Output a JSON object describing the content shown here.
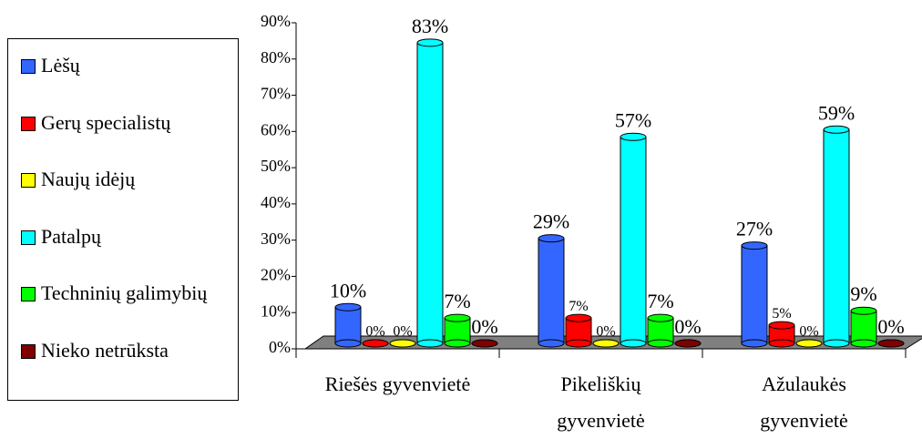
{
  "chart_data": {
    "type": "bar3d",
    "categories": [
      "Riešės gyvenvietė",
      "Pikeliškių gyvenvietė",
      "Ažulaukės gyvenvietė"
    ],
    "series": [
      {
        "name": "Lėšų",
        "color": "#3366ff",
        "values": [
          10,
          29,
          27
        ],
        "value_labels": [
          "10%",
          "29%",
          "27%"
        ]
      },
      {
        "name": "Gerų specialistų",
        "color": "#ff0000",
        "values": [
          0,
          7,
          5
        ],
        "value_labels": [
          "0%",
          "7%",
          "5%"
        ]
      },
      {
        "name": "Naujų idėjų",
        "color": "#ffff00",
        "values": [
          0,
          0,
          0
        ],
        "value_labels": [
          "0%",
          "0%",
          "0%"
        ]
      },
      {
        "name": "Patalpų",
        "color": "#00ffff",
        "values": [
          83,
          57,
          59
        ],
        "value_labels": [
          "83%",
          "57%",
          "59%"
        ]
      },
      {
        "name": "Techninių galimybių",
        "color": "#00ff00",
        "values": [
          7,
          7,
          9
        ],
        "value_labels": [
          "7%",
          "7%",
          "9%"
        ]
      },
      {
        "name": "Nieko netrūksta",
        "color": "#800000",
        "values": [
          0,
          0,
          0
        ],
        "value_labels": [
          "0%",
          "0%",
          "0%"
        ]
      }
    ],
    "ylim": [
      0,
      90
    ],
    "yticks": [
      {
        "value": 0,
        "label": "0%"
      },
      {
        "value": 10,
        "label": "10%"
      },
      {
        "value": 20,
        "label": "20%"
      },
      {
        "value": 30,
        "label": "30%"
      },
      {
        "value": 40,
        "label": "40%"
      },
      {
        "value": 50,
        "label": "50%"
      },
      {
        "value": 60,
        "label": "60%"
      },
      {
        "value": 70,
        "label": "70%"
      },
      {
        "value": 80,
        "label": "80%"
      },
      {
        "value": 90,
        "label": "90%"
      }
    ],
    "legend": "left"
  }
}
